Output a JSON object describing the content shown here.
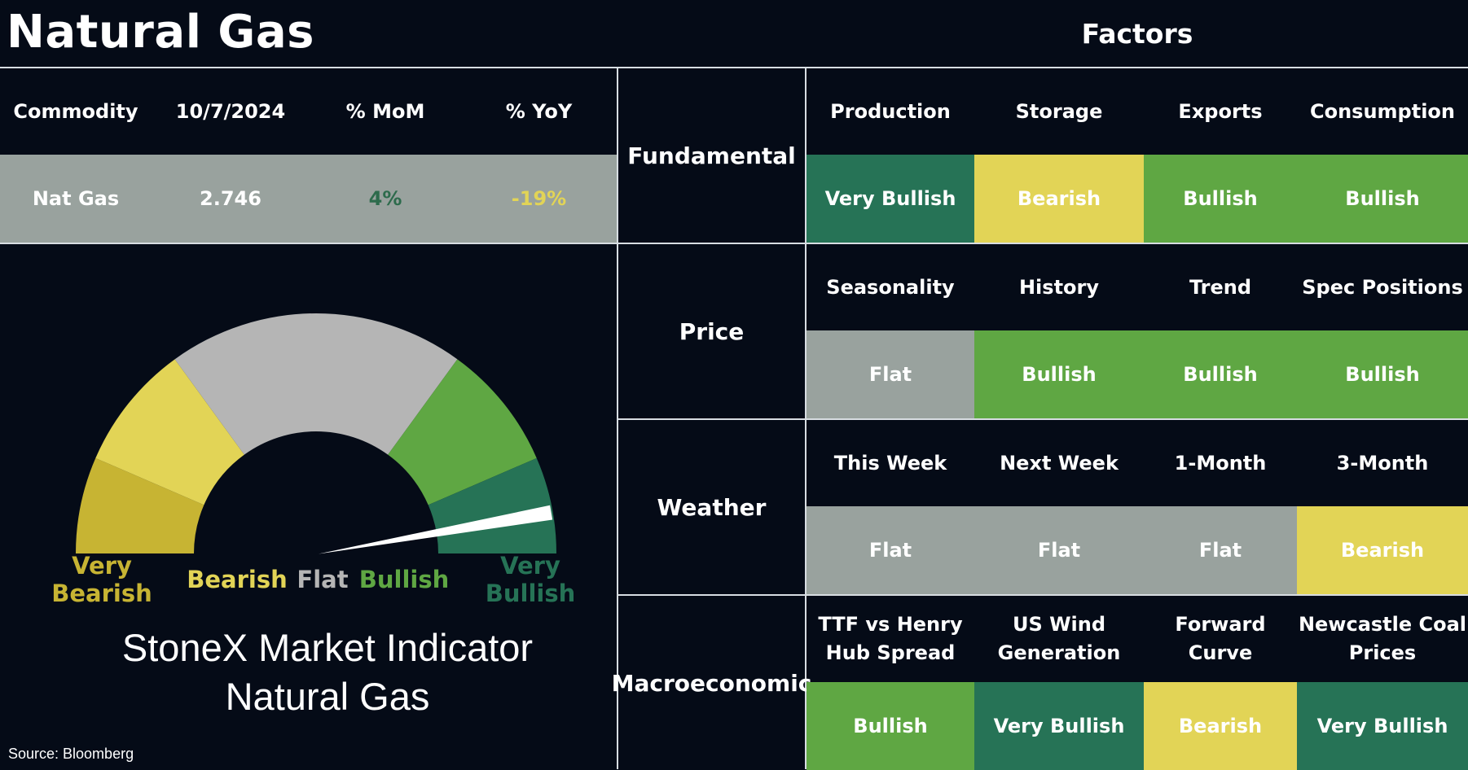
{
  "title": "Natural Gas",
  "factors_title": "Factors",
  "colors": {
    "very_bullish": "#267356",
    "bullish": "#5fa743",
    "flat": "#99a29e",
    "bearish": "#e2d456",
    "very_bearish": "#c7b433",
    "gauge_flat": "#b5b5b5",
    "background": "#050b17"
  },
  "commodity_table": {
    "headers": [
      "Commodity",
      "10/7/2024",
      "% MoM",
      "% YoY"
    ],
    "row": {
      "commodity": "Nat Gas",
      "price": "2.746",
      "mom": "4%",
      "yoy": "-19%"
    }
  },
  "factor_groups": [
    {
      "category": "Fundamental",
      "factors": [
        {
          "name": "Production",
          "signal": "Very Bullish"
        },
        {
          "name": "Storage",
          "signal": "Bearish"
        },
        {
          "name": "Exports",
          "signal": "Bullish"
        },
        {
          "name": "Consumption",
          "signal": "Bullish"
        }
      ]
    },
    {
      "category": "Price",
      "factors": [
        {
          "name": "Seasonality",
          "signal": "Flat"
        },
        {
          "name": "History",
          "signal": "Bullish"
        },
        {
          "name": "Trend",
          "signal": "Bullish"
        },
        {
          "name": "Spec Positions",
          "signal": "Bullish"
        }
      ]
    },
    {
      "category": "Weather",
      "factors": [
        {
          "name": "This Week",
          "signal": "Flat"
        },
        {
          "name": "Next Week",
          "signal": "Flat"
        },
        {
          "name": "1-Month",
          "signal": "Flat"
        },
        {
          "name": "3-Month",
          "signal": "Bearish"
        }
      ]
    },
    {
      "category": "Macroeconomic",
      "factors": [
        {
          "name": "TTF vs Henry Hub Spread",
          "line1": "TTF vs Henry",
          "line2": "Hub Spread",
          "signal": "Bullish"
        },
        {
          "name": "US Wind Generation",
          "line1": "US Wind",
          "line2": "Generation",
          "signal": "Very Bullish"
        },
        {
          "name": "Forward Curve",
          "line1": "Forward",
          "line2": "Curve",
          "signal": "Bearish"
        },
        {
          "name": "Newcastle Coal Prices",
          "line1": "Newcastle Coal",
          "line2": "Prices",
          "signal": "Very Bullish"
        }
      ]
    }
  ],
  "chart_data": {
    "type": "gauge",
    "segments": [
      {
        "label": "Very Bearish",
        "color": "#c7b433"
      },
      {
        "label": "Bearish",
        "color": "#e2d456"
      },
      {
        "label": "Flat",
        "color": "#b5b5b5"
      },
      {
        "label": "Bullish",
        "color": "#5fa743"
      },
      {
        "label": "Very Bullish",
        "color": "#267356"
      }
    ],
    "indicator": "Bullish",
    "indicator_fraction": 0.945,
    "caption_line1": "StoneX Market Indicator",
    "caption_line2": "Natural Gas"
  },
  "source": "Source: Bloomberg"
}
